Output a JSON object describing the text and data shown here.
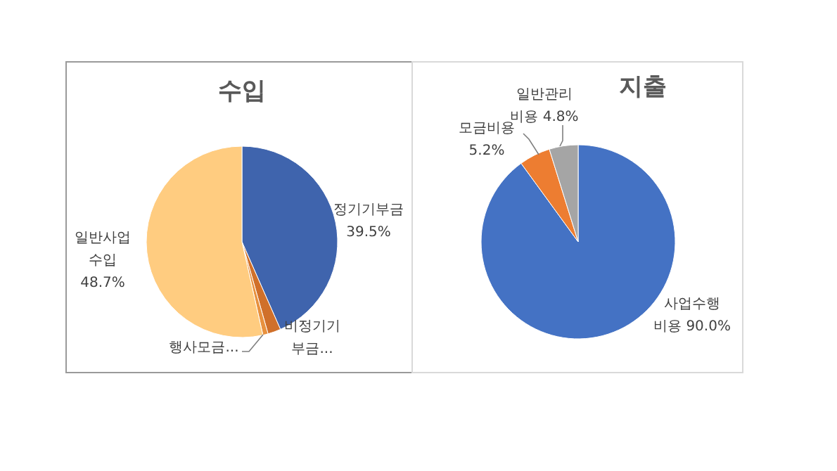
{
  "chart_data": [
    {
      "type": "pie",
      "title": "수입",
      "categories": [
        "정기기부금",
        "비정기기부금...",
        "행사모금...",
        "일반사업수입"
      ],
      "values": [
        39.5,
        2.0,
        0.8,
        48.7
      ],
      "colors": [
        "#3f64ad",
        "#d0702a",
        "#e8913e",
        "#ffcc80"
      ],
      "value_labels": [
        "39.5%",
        null,
        null,
        "48.7%"
      ]
    },
    {
      "type": "pie",
      "title": "지출",
      "categories": [
        "사업수행비용",
        "모금비용",
        "일반관리비용"
      ],
      "values": [
        90.0,
        5.2,
        4.8
      ],
      "colors": [
        "#4472c4",
        "#ed7d31",
        "#a5a5a5"
      ],
      "value_labels": [
        "90.0%",
        "5.2%",
        "4.8%"
      ]
    }
  ]
}
